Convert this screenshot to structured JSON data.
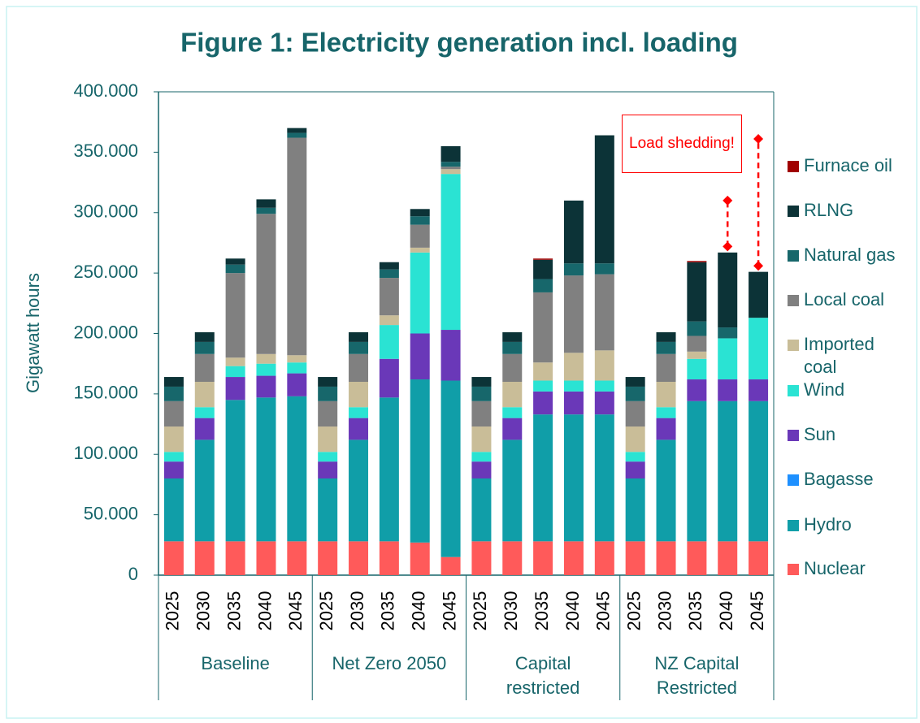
{
  "chart_data": {
    "type": "stacked_bar",
    "title": "Figure 1: Electricity generation incl. loading",
    "y_label": "Gigawatt hours",
    "categories": [
      "2025",
      "2030",
      "2035",
      "2040",
      "2045",
      "2025",
      "2030",
      "2035",
      "2040",
      "2045",
      "2025",
      "2030",
      "2035",
      "2040",
      "2045",
      "2025",
      "2030",
      "2035",
      "2040",
      "2045"
    ],
    "groups": [
      "Baseline",
      "Net Zero 2050",
      "Capital restricted",
      "NZ Capital Restricted"
    ],
    "ylim": [
      0,
      400
    ],
    "yticks": [
      0,
      {
        "value": 50,
        "label": "50.000"
      },
      {
        "value": 100,
        "label": "100.000"
      },
      {
        "value": 150,
        "label": "150.000"
      },
      {
        "value": 200,
        "label": "200.000"
      },
      {
        "value": 250,
        "label": "250.000"
      },
      {
        "value": 300,
        "label": "300.000"
      },
      {
        "value": 350,
        "label": "350.000"
      },
      {
        "value": 400,
        "label": "400.000"
      }
    ],
    "grid": false,
    "legend": "right",
    "series": [
      {
        "name": "Nuclear",
        "color": "#ff5a5a",
        "values": [
          28,
          28,
          28,
          28,
          28,
          28,
          28,
          28,
          27,
          15,
          28,
          28,
          28,
          28,
          28,
          28,
          28,
          28,
          28,
          28
        ]
      },
      {
        "name": "Hydro",
        "color": "#109ea8",
        "values": [
          52,
          84,
          117,
          119,
          120,
          52,
          84,
          119,
          135,
          146,
          52,
          84,
          105,
          105,
          105,
          52,
          84,
          116,
          116,
          116
        ]
      },
      {
        "name": "Bagasse",
        "color": "#1e90ff",
        "values": [
          0,
          0,
          0,
          0,
          0,
          0,
          0,
          0,
          0,
          0,
          0,
          0,
          0,
          0,
          0,
          0,
          0,
          0,
          0,
          0
        ]
      },
      {
        "name": "Sun",
        "color": "#6a38b8",
        "values": [
          14,
          18,
          19,
          18,
          19,
          14,
          18,
          32,
          38,
          42,
          14,
          18,
          19,
          19,
          19,
          14,
          18,
          18,
          18,
          18
        ]
      },
      {
        "name": "Wind",
        "color": "#2ae3d3",
        "values": [
          8,
          9,
          9,
          10,
          9,
          8,
          9,
          28,
          67,
          129,
          8,
          9,
          9,
          9,
          9,
          8,
          9,
          17,
          34,
          51
        ]
      },
      {
        "name": "Imported coal",
        "color": "#c9bd98",
        "values": [
          21,
          21,
          7,
          8,
          6,
          21,
          21,
          8,
          4,
          4,
          21,
          21,
          15,
          23,
          25,
          21,
          21,
          6,
          0,
          0
        ]
      },
      {
        "name": "Local coal",
        "color": "#808080",
        "values": [
          21,
          23,
          70,
          116,
          180,
          21,
          23,
          31,
          19,
          2,
          21,
          23,
          58,
          64,
          63,
          21,
          23,
          13,
          0,
          0
        ]
      },
      {
        "name": "Natural gas",
        "color": "#17676b",
        "values": [
          12,
          10,
          7,
          5,
          4,
          12,
          10,
          7,
          7,
          4,
          12,
          10,
          11,
          10,
          9,
          12,
          10,
          12,
          9,
          0
        ]
      },
      {
        "name": "RLNG",
        "color": "#0c3337",
        "values": [
          8,
          8,
          5,
          7,
          4,
          8,
          8,
          6,
          6,
          13,
          8,
          8,
          16,
          52,
          106,
          8,
          8,
          49,
          62,
          38
        ]
      },
      {
        "name": "Furnace oil",
        "color": "#a00000",
        "values": [
          0,
          0,
          0,
          0,
          0,
          0,
          0,
          0,
          0,
          0,
          0,
          0,
          1,
          0,
          0,
          0,
          0,
          1,
          0,
          0
        ]
      }
    ],
    "load_shedding": {
      "label": "Load shedding!",
      "color": "#ff0000",
      "low": [
        null,
        null,
        null,
        null,
        null,
        null,
        null,
        null,
        null,
        null,
        null,
        null,
        null,
        null,
        null,
        null,
        null,
        null,
        272,
        256
      ],
      "high": [
        null,
        null,
        null,
        null,
        null,
        null,
        null,
        null,
        null,
        null,
        null,
        null,
        null,
        null,
        null,
        null,
        null,
        null,
        310,
        361
      ]
    }
  }
}
